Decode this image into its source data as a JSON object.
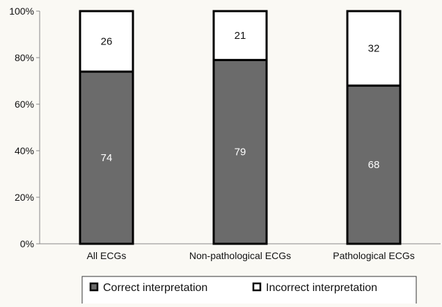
{
  "chart_data": {
    "type": "bar",
    "stacked": true,
    "percent_stacked": true,
    "categories": [
      "All ECGs",
      "Non-pathological ECGs",
      "Pathological ECGs"
    ],
    "series": [
      {
        "name": "Correct interpretation",
        "values": [
          74,
          79,
          68
        ],
        "color": "#6b6b6b",
        "label_color": "#ffffff"
      },
      {
        "name": "Incorrect interpretation",
        "values": [
          26,
          21,
          32
        ],
        "color": "#ffffff",
        "label_color": "#111111"
      }
    ],
    "ylim": [
      0,
      100
    ],
    "yticks": [
      "0%",
      "20%",
      "40%",
      "60%",
      "80%",
      "100%"
    ],
    "grid": false,
    "legend_position": "bottom"
  }
}
